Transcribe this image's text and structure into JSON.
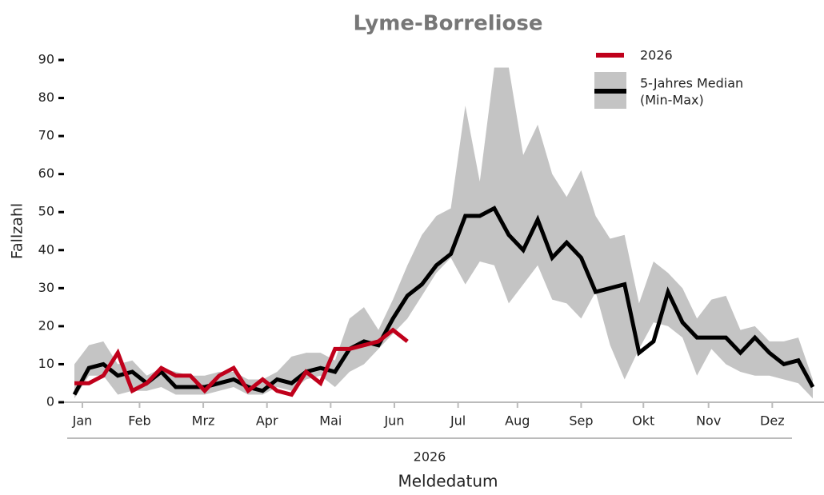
{
  "chart_data": {
    "type": "line",
    "title": "Lyme-Borreliose",
    "y_label": "Fallzahl",
    "x_label": "Meldedatum",
    "x_group_label": "2026",
    "x": [
      1,
      2,
      3,
      4,
      5,
      6,
      7,
      8,
      9,
      10,
      11,
      12,
      13,
      14,
      15,
      16,
      17,
      18,
      19,
      20,
      21,
      22,
      23,
      24,
      25,
      26,
      27,
      28,
      29,
      30,
      31,
      32,
      33,
      34,
      35,
      36,
      37,
      38,
      39,
      40,
      41,
      42,
      43,
      44,
      45,
      46,
      47,
      48,
      49,
      50,
      51,
      52
    ],
    "xlim": [
      1,
      52
    ],
    "xticks": [
      {
        "value": 1.55,
        "label": "Jan"
      },
      {
        "value": 5.5,
        "label": "Feb"
      },
      {
        "value": 9.9,
        "label": "Mrz"
      },
      {
        "value": 14.3,
        "label": "Apr"
      },
      {
        "value": 18.7,
        "label": "Mai"
      },
      {
        "value": 23.1,
        "label": "Jun"
      },
      {
        "value": 27.5,
        "label": "Jul"
      },
      {
        "value": 31.6,
        "label": "Aug"
      },
      {
        "value": 36.0,
        "label": "Sep"
      },
      {
        "value": 40.3,
        "label": "Okt"
      },
      {
        "value": 44.8,
        "label": "Nov"
      },
      {
        "value": 49.2,
        "label": "Dez"
      }
    ],
    "ylim": [
      0,
      90
    ],
    "yticks": [
      0,
      10,
      20,
      30,
      40,
      50,
      60,
      70,
      80,
      90
    ],
    "band": {
      "name": "(Min-Max)",
      "color": "#c4c4c4",
      "lower": [
        1,
        7,
        7,
        2,
        3,
        3,
        4,
        2,
        2,
        2,
        3,
        4,
        2,
        2,
        4,
        3,
        6,
        7,
        4,
        8,
        10,
        14,
        18,
        22,
        28,
        34,
        38,
        31,
        37,
        36,
        26,
        31,
        36,
        27,
        26,
        22,
        29,
        15,
        6,
        14,
        21,
        20,
        17,
        7,
        14,
        10,
        8,
        7,
        7,
        6,
        5,
        1
      ],
      "upper": [
        10,
        15,
        16,
        10,
        11,
        7,
        9,
        8,
        7,
        7,
        8,
        8,
        6,
        6,
        8,
        12,
        13,
        13,
        11,
        22,
        25,
        19,
        27,
        36,
        44,
        49,
        51,
        78,
        58,
        88,
        88,
        65,
        73,
        60,
        54,
        61,
        49,
        43,
        44,
        26,
        37,
        34,
        30,
        22,
        27,
        28,
        19,
        20,
        16,
        16,
        17,
        6
      ]
    },
    "series": [
      {
        "name": "2026",
        "color": "#c0001b",
        "values": [
          5,
          5,
          7,
          13,
          3,
          5,
          9,
          7,
          7,
          3,
          7,
          9,
          3,
          6,
          3,
          2,
          8,
          5,
          14,
          14,
          15,
          16,
          19,
          16,
          null,
          null,
          null,
          null,
          null,
          null,
          null,
          null,
          null,
          null,
          null,
          null,
          null,
          null,
          null,
          null,
          null,
          null,
          null,
          null,
          null,
          null,
          null,
          null,
          null,
          null,
          null,
          null
        ]
      },
      {
        "name": "5-Jahres Median",
        "color": "#000000",
        "values": [
          2,
          9,
          10,
          7,
          8,
          5,
          8,
          4,
          4,
          4,
          5,
          6,
          4,
          3,
          6,
          5,
          8,
          9,
          8,
          14,
          16,
          15,
          22,
          28,
          31,
          36,
          39,
          49,
          49,
          51,
          44,
          40,
          48,
          38,
          42,
          38,
          29,
          30,
          31,
          13,
          16,
          29,
          21,
          17,
          17,
          17,
          13,
          17,
          13,
          10,
          11,
          4
        ]
      }
    ]
  }
}
